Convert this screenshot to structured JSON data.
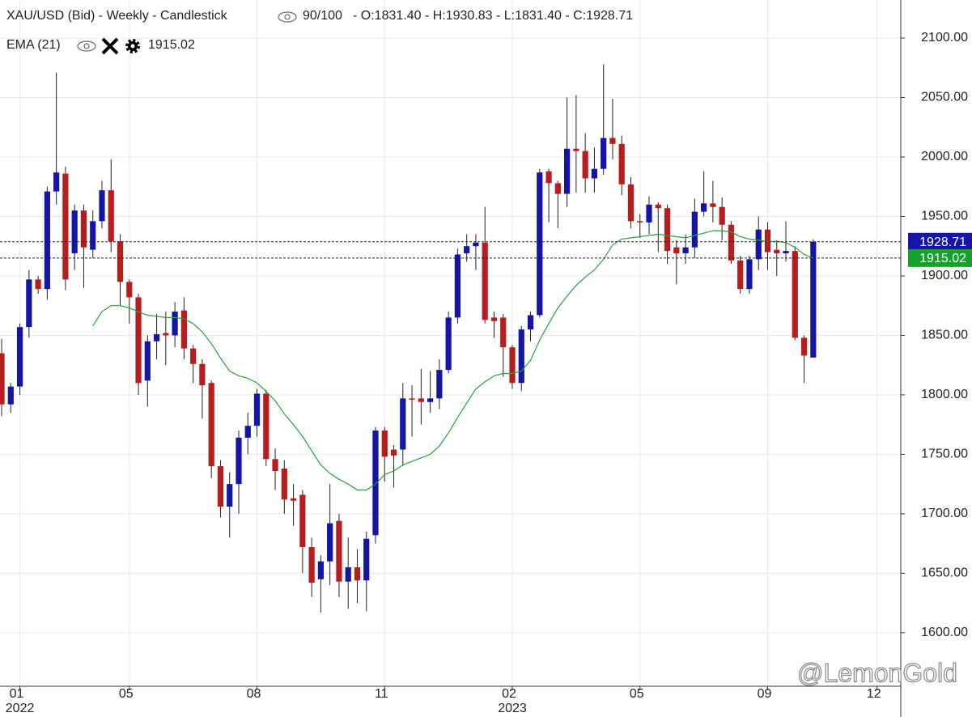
{
  "chart_data": {
    "type": "candlestick",
    "title": "XAU/USD (Bid) - Weekly - Candlestick",
    "zoom_label": "90/100",
    "ohlc_label": "- O:1831.40 - H:1930.83 - L:1831.40 - C:1928.71",
    "watermark": "@LemonGold",
    "up_color": "#1414a6",
    "down_color": "#b81c1c",
    "open": [
      1835,
      1792,
      1807,
      1857,
      1897,
      1889,
      1971,
      1986,
      1919,
      1955,
      1922,
      1946,
      1972,
      1929,
      1895,
      1882,
      1812,
      1845,
      1852,
      1850,
      1871,
      1839,
      1826,
      1810,
      1740,
      1706,
      1725,
      1764,
      1774,
      1801,
      1746,
      1738,
      1713,
      1716,
      1672,
      1645,
      1660,
      1694,
      1643,
      1655,
      1644,
      1682,
      1770,
      1754,
      1754,
      1797,
      1797,
      1794,
      1797,
      1821,
      1865,
      1919,
      1925,
      1928,
      1865,
      1865,
      1840,
      1810,
      1855,
      1867,
      1988,
      1978,
      1969,
      2007,
      2005,
      1982,
      1990,
      2016,
      2011,
      1977,
      1946,
      1945,
      1960,
      1957,
      1924,
      1919,
      1924,
      1954,
      1961,
      1958,
      1943,
      1913,
      1889,
      1914,
      1939,
      1922,
      1919,
      1921,
      1848,
      1831.4
    ],
    "high": [
      1847,
      1810,
      1860,
      1905,
      1900,
      1975,
      2071,
      1992,
      1960,
      1960,
      1955,
      1980,
      1998,
      1935,
      1897,
      1885,
      1850,
      1868,
      1870,
      1878,
      1882,
      1842,
      1830,
      1812,
      1745,
      1735,
      1770,
      1785,
      1805,
      1804,
      1755,
      1745,
      1725,
      1720,
      1680,
      1665,
      1725,
      1700,
      1680,
      1670,
      1685,
      1773,
      1773,
      1758,
      1810,
      1808,
      1822,
      1820,
      1830,
      1870,
      1923,
      1935,
      1935,
      1958,
      1870,
      1868,
      1842,
      1858,
      1870,
      1990,
      1990,
      1980,
      2050,
      2052,
      2020,
      2008,
      2078,
      2049,
      2018,
      1983,
      1952,
      1967,
      1962,
      1960,
      1930,
      1935,
      1965,
      1988,
      1980,
      1966,
      1946,
      1917,
      1917,
      1950,
      1945,
      1930,
      1946,
      1925,
      1850,
      1930.83
    ],
    "low": [
      1782,
      1785,
      1800,
      1848,
      1885,
      1880,
      1960,
      1888,
      1905,
      1890,
      1915,
      1940,
      1920,
      1875,
      1860,
      1800,
      1790,
      1830,
      1825,
      1840,
      1830,
      1810,
      1780,
      1730,
      1697,
      1680,
      1700,
      1750,
      1765,
      1740,
      1720,
      1700,
      1690,
      1650,
      1630,
      1617,
      1640,
      1630,
      1620,
      1625,
      1618,
      1675,
      1727,
      1722,
      1740,
      1765,
      1775,
      1785,
      1788,
      1818,
      1860,
      1912,
      1905,
      1860,
      1848,
      1815,
      1805,
      1803,
      1845,
      1865,
      1945,
      1940,
      1958,
      1970,
      1970,
      1970,
      1985,
      1998,
      1968,
      1940,
      1932,
      1935,
      1920,
      1910,
      1893,
      1910,
      1915,
      1950,
      1945,
      1930,
      1910,
      1885,
      1885,
      1905,
      1905,
      1900,
      1912,
      1846,
      1810,
      1831.4
    ],
    "close": [
      1792,
      1807,
      1857,
      1897,
      1889,
      1971,
      1987,
      1897,
      1955,
      1924,
      1946,
      1972,
      1929,
      1895,
      1882,
      1810,
      1845,
      1851,
      1850,
      1870,
      1839,
      1826,
      1808,
      1740,
      1706,
      1725,
      1764,
      1774,
      1801,
      1746,
      1736,
      1712,
      1711,
      1672,
      1642,
      1660,
      1692,
      1643,
      1655,
      1644,
      1679,
      1770,
      1748,
      1749,
      1797,
      1796,
      1794,
      1797,
      1821,
      1865,
      1918,
      1925,
      1928,
      1863,
      1862,
      1840,
      1810,
      1855,
      1867,
      1987,
      1978,
      1969,
      2007,
      2005,
      1982,
      1990,
      2016,
      2011,
      1977,
      1946,
      1945,
      1960,
      1957,
      1921,
      1919,
      1924,
      1954,
      1961,
      1958,
      1943,
      1913,
      1889,
      1914,
      1939,
      1920,
      1919,
      1921,
      1848,
      1833,
      1928.71
    ],
    "ema": {
      "name": "EMA (21)",
      "color": "#2e9e3e",
      "values": [
        null,
        null,
        null,
        null,
        null,
        null,
        null,
        null,
        null,
        null,
        1858,
        1870,
        1875,
        1875,
        1873,
        1870,
        1867,
        1866,
        1865,
        1865,
        1864,
        1860,
        1853,
        1843,
        1831,
        1820,
        1816,
        1814,
        1810,
        1803,
        1795,
        1784,
        1775,
        1765,
        1753,
        1741,
        1734,
        1729,
        1725,
        1720,
        1720,
        1725,
        1733,
        1736,
        1741,
        1744,
        1747,
        1750,
        1757,
        1768,
        1781,
        1793,
        1805,
        1811,
        1816,
        1818,
        1818,
        1820,
        1829,
        1846,
        1860,
        1873,
        1883,
        1892,
        1899,
        1905,
        1914,
        1926,
        1931,
        1932,
        1933,
        1934,
        1935,
        1934,
        1933,
        1932,
        1934,
        1936,
        1938,
        1938,
        1937,
        1933,
        1931,
        1930,
        1929,
        1929,
        1928,
        1924,
        1918,
        1915.02
      ]
    },
    "ema_tag_color": "#17a02c",
    "ylim": [
      1555,
      2132
    ],
    "yticks": [
      {
        "value": 1600,
        "label": "1600.00"
      },
      {
        "value": 1650,
        "label": "1650.00"
      },
      {
        "value": 1700,
        "label": "1700.00"
      },
      {
        "value": 1750,
        "label": "1750.00"
      },
      {
        "value": 1800,
        "label": "1800.00"
      },
      {
        "value": 1850,
        "label": "1850.00"
      },
      {
        "value": 1900,
        "label": "1900.00"
      },
      {
        "value": 1950,
        "label": "1950.00"
      },
      {
        "value": 2000,
        "label": "2000.00"
      },
      {
        "value": 2050,
        "label": "2050.00"
      },
      {
        "value": 2100,
        "label": "2100.00"
      }
    ],
    "xlim": [
      -0.18,
      98.6
    ],
    "xticks": [
      {
        "value": 2,
        "label": "01"
      },
      {
        "value": 14,
        "label": "05"
      },
      {
        "value": 28,
        "label": "08"
      },
      {
        "value": 42,
        "label": "11"
      },
      {
        "value": 56,
        "label": "02"
      },
      {
        "value": 70,
        "label": "05"
      },
      {
        "value": 84,
        "label": "09"
      },
      {
        "value": 96,
        "label": "12"
      }
    ],
    "xtick_years": [
      {
        "value": 2,
        "label": "2022"
      },
      {
        "value": 56,
        "label": "2023"
      }
    ],
    "grid": true
  }
}
